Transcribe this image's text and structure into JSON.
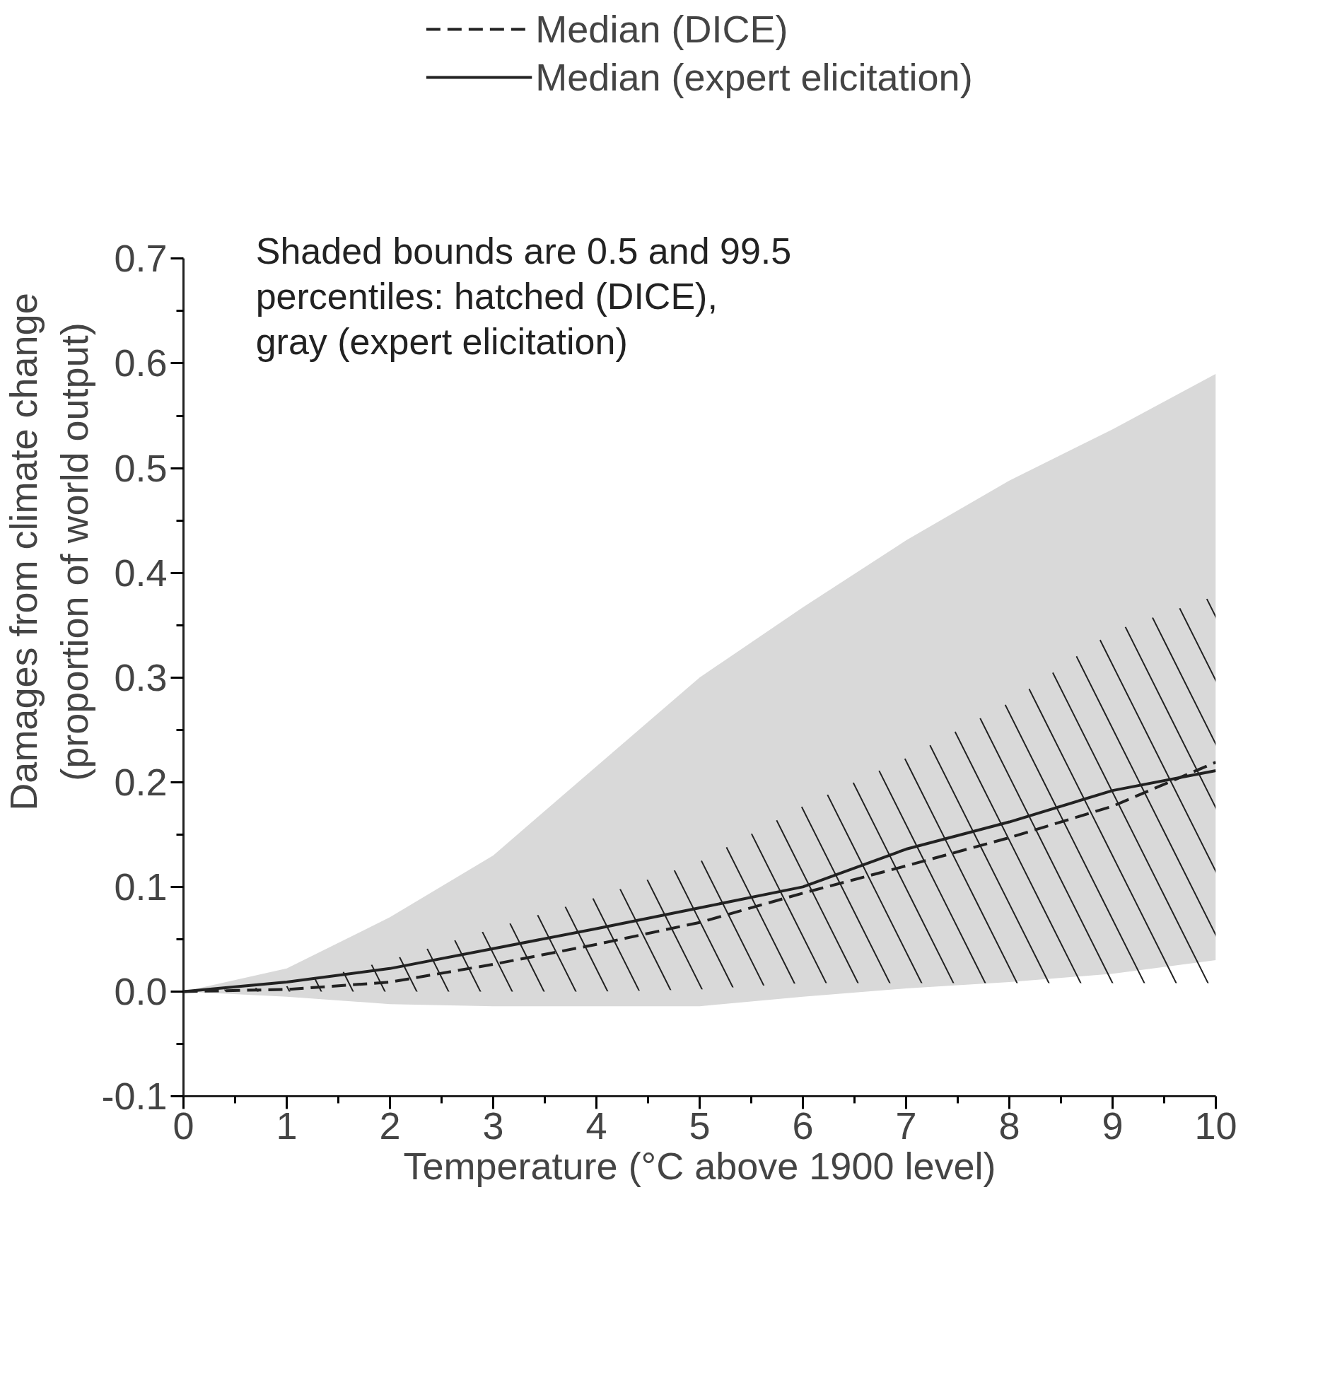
{
  "chart_data": {
    "type": "line",
    "xlabel": "Temperature (°C above 1900 level)",
    "ylabel": "Damages from climate change\n(proportion of world output)",
    "x": [
      0,
      1,
      2,
      3,
      4,
      5,
      6,
      7,
      8,
      9,
      10
    ],
    "series": [
      {
        "name": "Median (DICE)",
        "color": "#222222",
        "line_style": "dashed",
        "values": [
          0,
          0.002,
          0.009,
          0.026,
          0.045,
          0.066,
          0.094,
          0.12,
          0.147,
          0.177,
          0.219
        ],
        "lower": [
          0,
          0,
          0,
          0,
          0,
          0.002,
          0.008,
          0.008,
          0.008,
          0.008,
          0.008
        ],
        "upper": [
          0,
          0.005,
          0.03,
          0.06,
          0.09,
          0.124,
          0.177,
          0.223,
          0.276,
          0.344,
          0.378
        ]
      },
      {
        "name": "Median (expert elicitation)",
        "color": "#222222",
        "line_style": "solid",
        "values": [
          0,
          0.009,
          0.022,
          0.041,
          0.06,
          0.08,
          0.1,
          0.136,
          0.162,
          0.192,
          0.211
        ],
        "lower": [
          0,
          -0.005,
          -0.012,
          -0.014,
          -0.014,
          -0.014,
          -0.005,
          0.003,
          0.009,
          0.017,
          0.03
        ],
        "upper": [
          0,
          0.022,
          0.071,
          0.13,
          0.215,
          0.3,
          0.367,
          0.431,
          0.488,
          0.537,
          0.59
        ]
      }
    ],
    "annotations": [
      "Shaded bounds are 0.5 and 99.5\npercentiles:  hatched (DICE),\ngray (expert elicitation)"
    ],
    "xlim": [
      0,
      10
    ],
    "xticks": [
      0,
      1,
      2,
      3,
      4,
      5,
      6,
      7,
      8,
      9,
      10
    ],
    "ylim": [
      -0.1,
      0.7
    ],
    "yticks": [
      {
        "value": -0.1,
        "label": "-0.1"
      },
      {
        "value": 0,
        "label": "0.0"
      },
      0.1,
      0.2,
      0.3,
      0.4,
      0.5,
      0.6,
      0.7
    ],
    "grid": false,
    "legend": "top",
    "marker": "none"
  }
}
